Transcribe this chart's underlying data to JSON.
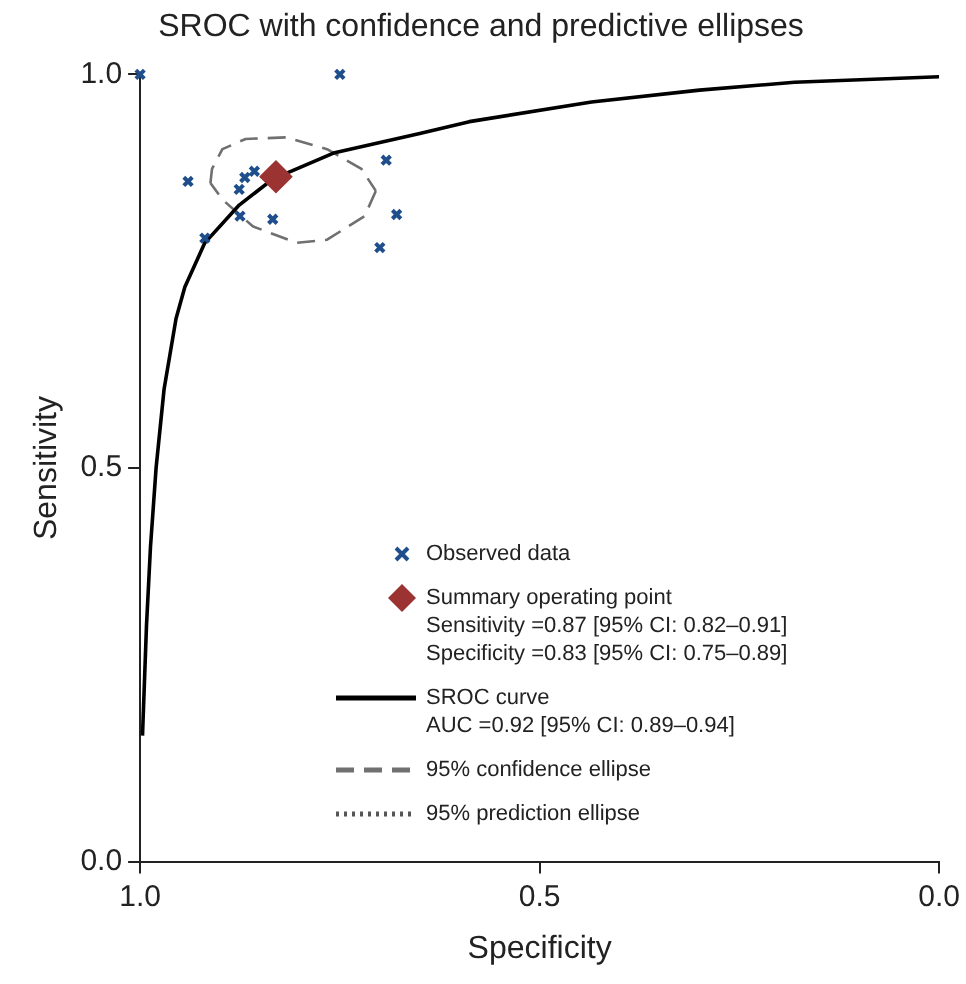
{
  "chart_data": {
    "type": "scatter",
    "title": "SROC with confidence and predictive ellipses",
    "xlabel": "Specificity",
    "ylabel": "Sensitivity",
    "xlim": [
      1,
      0
    ],
    "ylim": [
      0,
      1
    ],
    "xticks": [
      {
        "value": 1,
        "label": "1.0"
      },
      {
        "value": 0.5,
        "label": "0.5"
      },
      {
        "value": 0,
        "label": "0.0"
      }
    ],
    "yticks": [
      {
        "value": 0,
        "label": "0.0"
      },
      {
        "value": 0.5,
        "label": "0.5"
      },
      {
        "value": 1,
        "label": "1.0"
      }
    ],
    "legend": "bottom right",
    "series": [
      {
        "name": "Observed data",
        "type": "scatter",
        "marker": "cross",
        "color": "#1f4e8c",
        "x": [
          1.0,
          0.75,
          0.94,
          0.919,
          0.876,
          0.869,
          0.857,
          0.875,
          0.834,
          0.692,
          0.679,
          0.7
        ],
        "values": [
          1.0,
          1.0,
          0.864,
          0.792,
          0.854,
          0.869,
          0.877,
          0.82,
          0.816,
          0.891,
          0.822,
          0.78
        ]
      },
      {
        "name": "Summary operating point\nSensitivity =0.87 [95% CI: 0.82–0.91]\nSpecificity =0.83 [95% CI: 0.75–0.89]",
        "type": "scatter",
        "marker": "diamond",
        "color": "#9b3333",
        "x": [
          0.83
        ],
        "values": [
          0.87
        ]
      },
      {
        "name": "SROC curve\nAUC =0.92 [95% CI: 0.89–0.94]",
        "type": "line",
        "line_style": "solid",
        "color": "#000000",
        "x": [
          0.997,
          0.992,
          0.987,
          0.98,
          0.97,
          0.955,
          0.944,
          0.919,
          0.876,
          0.834,
          0.758,
          0.65,
          0.588,
          0.435,
          0.3,
          0.181,
          0
        ],
        "values": [
          0.16,
          0.3,
          0.4,
          0.5,
          0.6,
          0.69,
          0.73,
          0.786,
          0.834,
          0.867,
          0.9,
          0.925,
          0.94,
          0.965,
          0.98,
          0.99,
          0.997
        ]
      },
      {
        "name": "95% confidence ellipse",
        "type": "line",
        "line_style": "dashed",
        "color": "#707070",
        "x": [
          0.912,
          0.91,
          0.897,
          0.868,
          0.817,
          0.766,
          0.723,
          0.705
        ],
        "values": [
          0.862,
          0.88,
          0.905,
          0.918,
          0.92,
          0.905,
          0.88,
          0.852
        ]
      },
      {
        "type": "line",
        "line_style": "dashed",
        "color": "#707070",
        "x": [
          0.705,
          0.719,
          0.766,
          0.804,
          0.859,
          0.897,
          0.912
        ],
        "values": [
          0.852,
          0.82,
          0.79,
          0.786,
          0.807,
          0.841,
          0.862
        ]
      },
      {
        "name": "95% prediction ellipse",
        "type": "line",
        "line_style": "dotted",
        "color": "#555555"
      }
    ]
  }
}
